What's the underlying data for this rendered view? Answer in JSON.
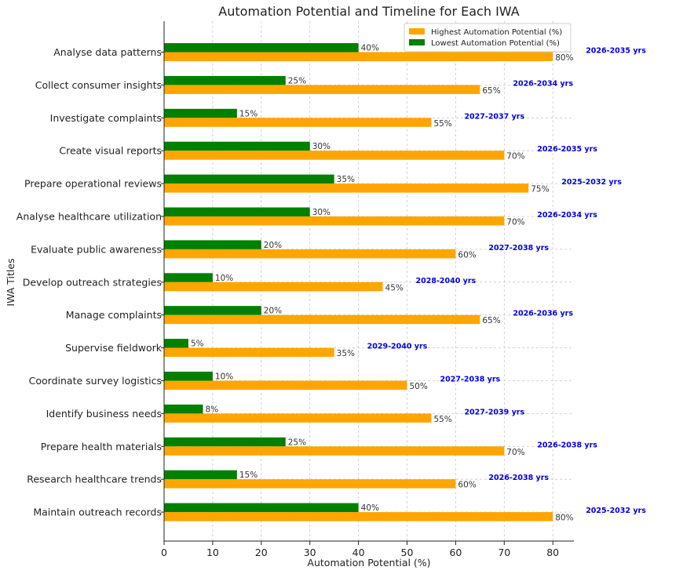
{
  "chart_data": {
    "type": "bar",
    "orientation": "horizontal",
    "title": "Automation Potential and Timeline for Each IWA",
    "xlabel": "Automation Potential (%)",
    "ylabel": "IWA Titles",
    "xlim": [
      0,
      84
    ],
    "xticks": [
      0,
      10,
      20,
      30,
      40,
      50,
      60,
      70,
      80
    ],
    "grid": true,
    "legend_position": "top-right",
    "categories": [
      "Analyse data patterns",
      "Collect consumer insights",
      "Investigate complaints",
      "Create visual reports",
      "Prepare operational reviews",
      "Analyse healthcare utilization",
      "Evaluate public awareness",
      "Develop outreach strategies",
      "Manage complaints",
      "Supervise fieldwork",
      "Coordinate survey logistics",
      "Identify business needs",
      "Prepare health materials",
      "Research healthcare trends",
      "Maintain outreach records"
    ],
    "series": [
      {
        "name": "Highest Automation Potential (%)",
        "color": "#ffa500",
        "values": [
          80,
          65,
          55,
          70,
          75,
          70,
          60,
          45,
          65,
          35,
          50,
          55,
          70,
          60,
          80
        ],
        "labels": [
          "80%",
          "65%",
          "55%",
          "70%",
          "75%",
          "70%",
          "60%",
          "45%",
          "65%",
          "35%",
          "50%",
          "55%",
          "70%",
          "60%",
          "80%"
        ]
      },
      {
        "name": "Lowest Automation Potential (%)",
        "color": "#008000",
        "values": [
          40,
          25,
          15,
          30,
          35,
          30,
          20,
          10,
          20,
          5,
          10,
          8,
          25,
          15,
          40
        ],
        "labels": [
          "40%",
          "25%",
          "15%",
          "30%",
          "35%",
          "30%",
          "20%",
          "10%",
          "20%",
          "5%",
          "10%",
          "8%",
          "25%",
          "15%",
          "40%"
        ]
      }
    ],
    "timelines": [
      "2026-2035 yrs",
      "2026-2034 yrs",
      "2027-2037 yrs",
      "2026-2035 yrs",
      "2025-2032 yrs",
      "2026-2034 yrs",
      "2027-2038 yrs",
      "2028-2040 yrs",
      "2026-2036 yrs",
      "2029-2040 yrs",
      "2027-2038 yrs",
      "2027-2039 yrs",
      "2026-2038 yrs",
      "2026-2038 yrs",
      "2025-2032 yrs"
    ],
    "timeline_color": "#0000e0"
  }
}
